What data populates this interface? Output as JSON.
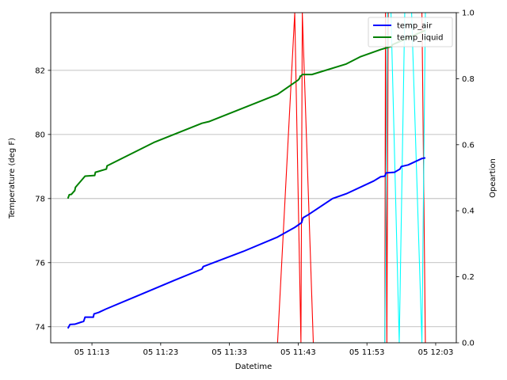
{
  "chart_data": {
    "type": "line",
    "xlabel": "Datetime",
    "ylabel_left": "Temperature (deg F)",
    "ylabel_right": "Opeartion",
    "x_ticks": [
      "05 11:13",
      "05 11:23",
      "05 11:33",
      "05 11:43",
      "05 11:53",
      "05 12:03"
    ],
    "xlim": [
      "11:07:00",
      "12:06:00"
    ],
    "y_left": {
      "ylim": [
        73.5,
        83.8
      ],
      "ticks": [
        74,
        76,
        78,
        80,
        82
      ]
    },
    "y_right": {
      "ylim": [
        0,
        1
      ],
      "ticks": [
        "0.0",
        "0.2",
        "0.4",
        "0.6",
        "0.8",
        "1.0"
      ]
    },
    "grid": "horizontal",
    "legend_position": "top-right",
    "legend": [
      {
        "name": "temp_air",
        "color": "#0000ff"
      },
      {
        "name": "temp_liquid",
        "color": "#008000"
      }
    ],
    "series": [
      {
        "name": "temp_air",
        "axis": "left",
        "color": "#0000ff",
        "points": [
          [
            "11:09:30",
            73.95
          ],
          [
            "11:09:48",
            74.07
          ],
          [
            "11:10:30",
            74.08
          ],
          [
            "11:11:48",
            74.17
          ],
          [
            "11:12:00",
            74.3
          ],
          [
            "11:13:12",
            74.3
          ],
          [
            "11:13:18",
            74.4
          ],
          [
            "11:14:00",
            74.45
          ],
          [
            "11:15:00",
            74.55
          ],
          [
            "11:20:00",
            75.0
          ],
          [
            "11:25:00",
            75.45
          ],
          [
            "11:29:00",
            75.8
          ],
          [
            "11:29:12",
            75.88
          ],
          [
            "11:35:00",
            76.35
          ],
          [
            "11:40:00",
            76.8
          ],
          [
            "11:42:30",
            77.1
          ],
          [
            "11:43:30",
            77.25
          ],
          [
            "11:43:42",
            77.4
          ],
          [
            "11:44:30",
            77.5
          ],
          [
            "11:48:00",
            78.0
          ],
          [
            "11:50:00",
            78.15
          ],
          [
            "11:54:00",
            78.55
          ],
          [
            "11:55:00",
            78.68
          ],
          [
            "11:55:36",
            78.7
          ],
          [
            "11:55:48",
            78.8
          ],
          [
            "11:57:00",
            78.82
          ],
          [
            "11:57:48",
            78.92
          ],
          [
            "11:58:00",
            79.0
          ],
          [
            "11:59:00",
            79.05
          ],
          [
            "12:01:00",
            79.25
          ],
          [
            "12:01:30",
            79.27
          ]
        ]
      },
      {
        "name": "temp_liquid",
        "axis": "left",
        "color": "#008000",
        "points": [
          [
            "11:09:30",
            78.0
          ],
          [
            "11:09:42",
            78.12
          ],
          [
            "11:10:00",
            78.13
          ],
          [
            "11:10:30",
            78.25
          ],
          [
            "11:10:36",
            78.35
          ],
          [
            "11:12:00",
            78.7
          ],
          [
            "11:13:24",
            78.72
          ],
          [
            "11:13:30",
            78.82
          ],
          [
            "11:15:06",
            78.92
          ],
          [
            "11:15:12",
            79.02
          ],
          [
            "11:22:00",
            79.75
          ],
          [
            "11:29:00",
            80.35
          ],
          [
            "11:30:00",
            80.4
          ],
          [
            "11:40:00",
            81.25
          ],
          [
            "11:43:00",
            81.7
          ],
          [
            "11:43:12",
            81.75
          ],
          [
            "11:43:18",
            81.82
          ],
          [
            "11:43:24",
            81.82
          ],
          [
            "11:43:36",
            81.87
          ],
          [
            "11:45:00",
            81.87
          ],
          [
            "11:50:00",
            82.2
          ],
          [
            "11:52:00",
            82.42
          ],
          [
            "11:55:00",
            82.65
          ],
          [
            "11:56:36",
            82.75
          ],
          [
            "11:56:42",
            82.8
          ],
          [
            "12:01:30",
            83.25
          ]
        ]
      },
      {
        "name": "",
        "axis": "right",
        "color": "#ff0000",
        "points": [
          [
            "11:09:30",
            0
          ],
          [
            "11:40:00",
            0
          ],
          [
            "11:42:30",
            1.0
          ],
          [
            "11:43:24",
            0
          ],
          [
            "11:43:36",
            1.0
          ],
          [
            "11:45:12",
            0
          ],
          [
            "11:55:36",
            0
          ],
          [
            "11:55:42",
            1.0
          ],
          [
            "11:55:54",
            0
          ],
          [
            "11:56:06",
            1.0
          ],
          [
            "11:58:30",
            1.0
          ],
          [
            "12:01:00",
            1.0
          ],
          [
            "12:01:30",
            0
          ]
        ]
      },
      {
        "name": "",
        "axis": "right",
        "color": "#00ffff",
        "points": [
          [
            "11:09:30",
            0
          ],
          [
            "11:55:36",
            0
          ],
          [
            "11:56:00",
            1.0
          ],
          [
            "11:56:30",
            1.0
          ],
          [
            "11:57:42",
            0
          ],
          [
            "11:58:30",
            1.0
          ],
          [
            "11:59:30",
            1.0
          ],
          [
            "12:01:00",
            0
          ],
          [
            "12:01:30",
            1.0
          ]
        ]
      }
    ]
  }
}
